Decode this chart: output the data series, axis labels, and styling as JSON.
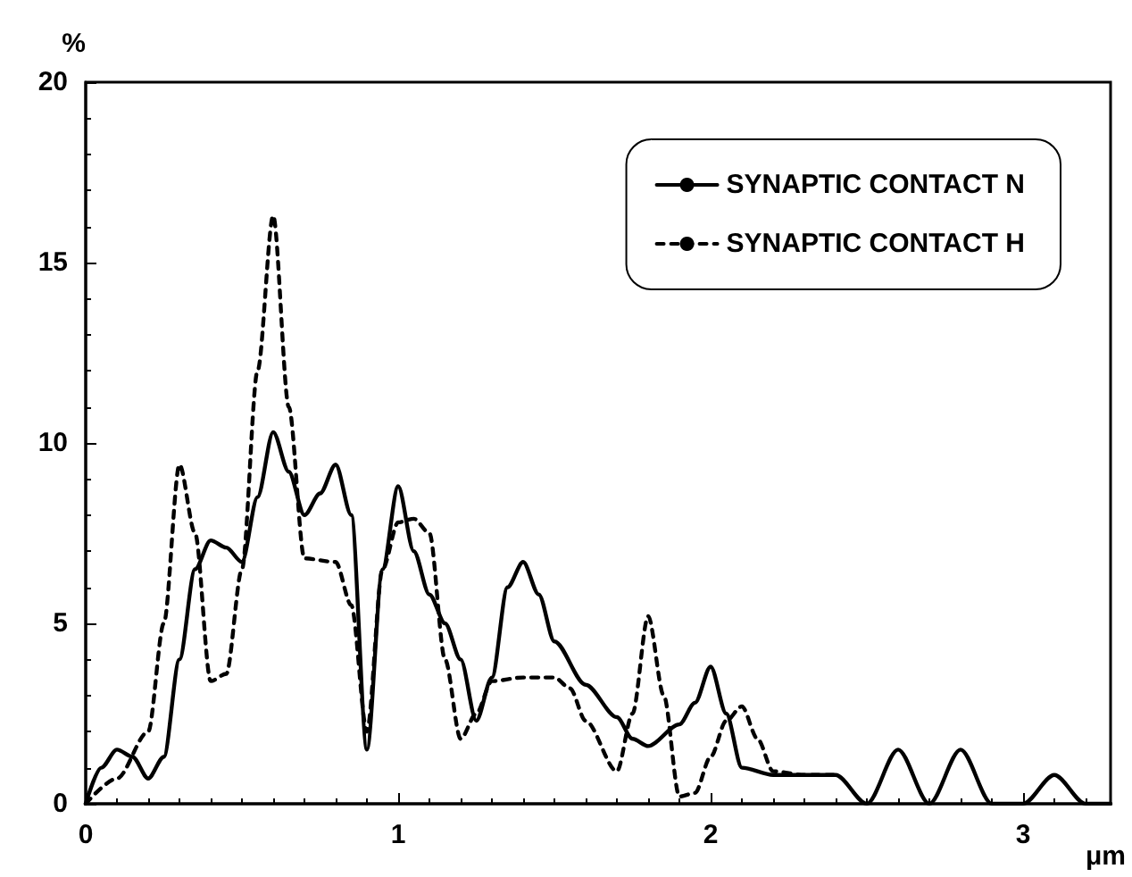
{
  "chart_data": {
    "type": "line",
    "xlabel": "μm",
    "ylabel": "%",
    "xlim": [
      0,
      3.28
    ],
    "ylim": [
      0,
      20
    ],
    "xticks": [
      0,
      1,
      2,
      3
    ],
    "yticks": [
      0,
      5,
      10,
      15,
      20
    ],
    "grid": false,
    "legend": "top right",
    "marker": "none",
    "series": [
      {
        "name": "SYNAPTIC CONTACT N",
        "color": "#000000",
        "line_style": "solid",
        "x": [
          0,
          0.05,
          0.1,
          0.15,
          0.2,
          0.25,
          0.3,
          0.35,
          0.4,
          0.45,
          0.5,
          0.55,
          0.6,
          0.65,
          0.7,
          0.75,
          0.8,
          0.85,
          0.9,
          0.95,
          1.0,
          1.05,
          1.1,
          1.15,
          1.2,
          1.25,
          1.3,
          1.35,
          1.4,
          1.45,
          1.5,
          1.6,
          1.7,
          1.75,
          1.8,
          1.9,
          1.95,
          2.0,
          2.05,
          2.1,
          2.2,
          2.3,
          2.4,
          2.5,
          2.6,
          2.7,
          2.8,
          2.9,
          3.0,
          3.1,
          3.2,
          3.28
        ],
        "values": [
          0,
          1.0,
          1.5,
          1.3,
          0.7,
          1.3,
          4.0,
          6.5,
          7.3,
          7.1,
          6.7,
          8.5,
          10.3,
          9.2,
          8.0,
          8.6,
          9.4,
          8.0,
          1.5,
          6.5,
          8.8,
          7.0,
          5.8,
          5.0,
          4.0,
          2.3,
          3.5,
          6.0,
          6.7,
          5.8,
          4.5,
          3.3,
          2.4,
          1.8,
          1.6,
          2.2,
          2.8,
          3.8,
          2.5,
          1.0,
          0.8,
          0.8,
          0.8,
          0,
          1.5,
          0,
          1.5,
          0,
          0,
          0.8,
          0,
          0
        ]
      },
      {
        "name": "SYNAPTIC CONTACT H",
        "color": "#000000",
        "line_style": "dashed",
        "x": [
          0,
          0.1,
          0.2,
          0.25,
          0.3,
          0.35,
          0.4,
          0.45,
          0.5,
          0.55,
          0.6,
          0.65,
          0.7,
          0.8,
          0.85,
          0.9,
          0.95,
          1.0,
          1.05,
          1.1,
          1.15,
          1.2,
          1.25,
          1.3,
          1.4,
          1.5,
          1.55,
          1.6,
          1.7,
          1.75,
          1.8,
          1.85,
          1.9,
          1.95,
          2.0,
          2.05,
          2.1,
          2.15,
          2.2,
          2.3,
          2.4
        ],
        "values": [
          0,
          0.7,
          2.0,
          5.0,
          9.4,
          7.5,
          3.4,
          3.6,
          6.5,
          12,
          16.3,
          11,
          6.8,
          6.7,
          5.5,
          2.0,
          6.5,
          7.8,
          7.9,
          7.5,
          4.0,
          1.8,
          2.5,
          3.4,
          3.5,
          3.5,
          3.2,
          2.3,
          0.9,
          2.5,
          5.2,
          3.0,
          0.2,
          0.3,
          1.3,
          2.3,
          2.7,
          1.8,
          0.9,
          0.8,
          0.8
        ]
      }
    ]
  }
}
